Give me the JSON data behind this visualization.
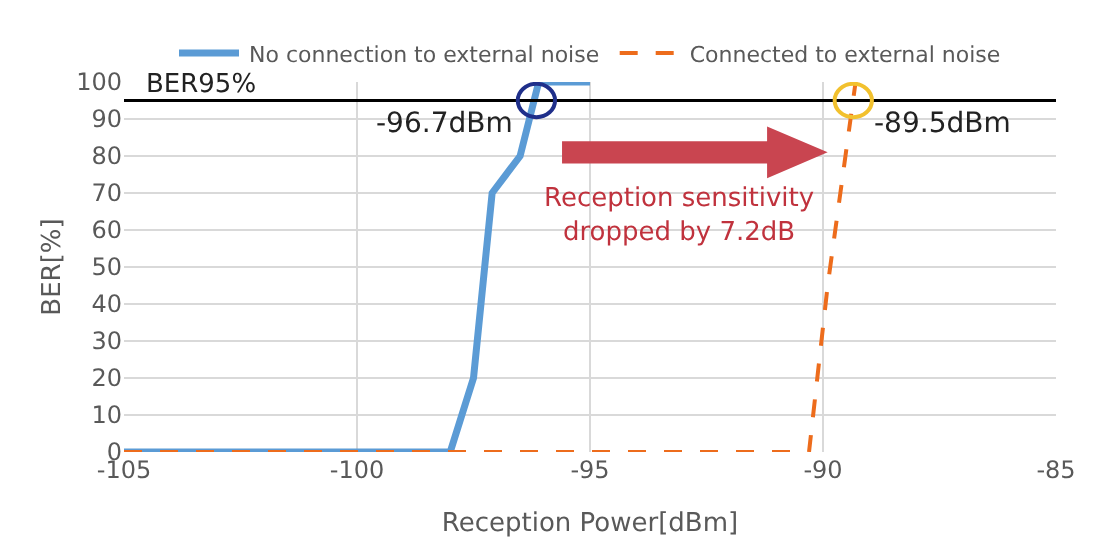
{
  "chart_data": {
    "type": "line",
    "xlabel": "Reception Power[dBm]",
    "ylabel": "BER[%]",
    "xlim": [
      -105,
      -85
    ],
    "xticks": [
      -105,
      -100,
      -95,
      -90,
      -85
    ],
    "ylim": [
      0,
      100
    ],
    "yticks": [
      0,
      10,
      20,
      30,
      40,
      50,
      60,
      70,
      80,
      90,
      100
    ],
    "grid": true,
    "legend": "top",
    "marker": "none",
    "series": [
      {
        "name": "No connection to external noise",
        "color": "#5b9bd5",
        "line_style": "solid",
        "x": [
          -105,
          -98,
          -97.5,
          -97.1,
          -96.5,
          -96.1,
          -95
        ],
        "values": [
          0,
          0,
          20,
          70,
          80,
          100,
          100
        ]
      },
      {
        "name": "Connected to external noise",
        "color": "#ed6c1c",
        "line_style": "dashed",
        "x": [
          -105,
          -90.3,
          -89.9,
          -89.3
        ],
        "values": [
          0,
          0,
          45,
          100
        ]
      }
    ],
    "ref_lines": [
      {
        "axis": "y",
        "value": 95,
        "label": "BER95%",
        "color": "#000000"
      }
    ],
    "annotations": [
      {
        "text": "-96.7dBm",
        "x": -96.15,
        "y": 95
      },
      {
        "text": "-89.5dBm",
        "x": -89.35,
        "y": 95
      },
      "Reception sensitivity\ndropped by 7.2dB"
    ]
  }
}
